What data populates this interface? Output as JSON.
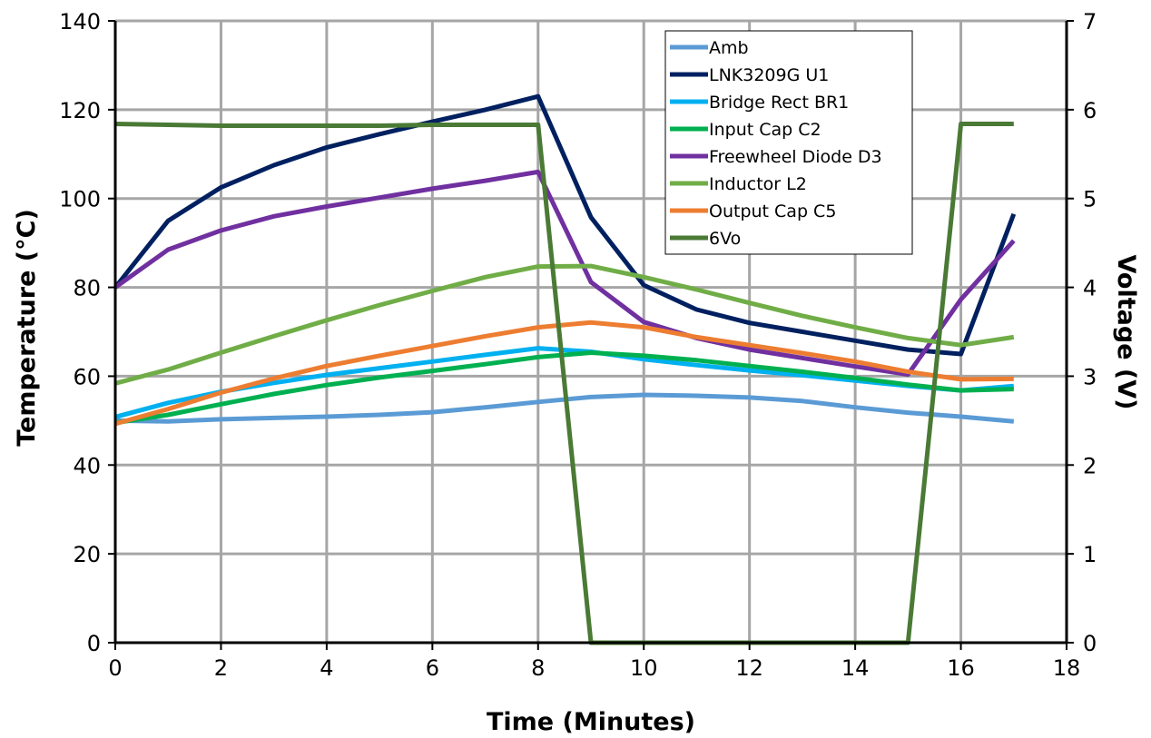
{
  "chart_data": {
    "type": "line",
    "xlabel": "Time (Minutes)",
    "ylabel": "Temperature (°C)",
    "y2label": "Voltage (V)",
    "xlim": [
      0,
      18
    ],
    "ylim": [
      0,
      140
    ],
    "y2lim": [
      0,
      7
    ],
    "xticks": [
      "0",
      "2",
      "4",
      "6",
      "8",
      "10",
      "12",
      "14",
      "16",
      "18"
    ],
    "yticks": [
      "0",
      "20",
      "40",
      "60",
      "80",
      "100",
      "120",
      "140"
    ],
    "y2ticks": [
      "0",
      "1",
      "2",
      "3",
      "4",
      "5",
      "6",
      "7"
    ],
    "grid": true,
    "legend_position": "top-right",
    "series": [
      {
        "name": "Amb",
        "color": "#5B9BD5",
        "axis": "left",
        "x": [
          0,
          1,
          2,
          3,
          4,
          5,
          6,
          7,
          8,
          9,
          10,
          11,
          12,
          13,
          14,
          15,
          16,
          17
        ],
        "y": [
          50,
          49.8,
          50.3,
          50.6,
          50.9,
          51.3,
          51.9,
          53,
          54.2,
          55.3,
          55.8,
          55.6,
          55.2,
          54.4,
          53,
          51.8,
          50.9,
          49.8
        ]
      },
      {
        "name": "LNK3209G U1",
        "color": "#002060",
        "axis": "left",
        "x": [
          0,
          1,
          2,
          3,
          4,
          5,
          6,
          7,
          8,
          9,
          10,
          11,
          12,
          13,
          14,
          15,
          16,
          17
        ],
        "y": [
          80,
          95,
          102.5,
          107.5,
          111.5,
          114.5,
          117.3,
          120,
          123,
          95.8,
          80.5,
          75,
          72,
          70,
          68,
          66,
          65,
          96.5
        ]
      },
      {
        "name": "Bridge Rect BR1",
        "color": "#00B0F0",
        "axis": "left",
        "x": [
          0,
          1,
          2,
          3,
          4,
          5,
          6,
          7,
          8,
          9,
          10,
          11,
          12,
          13,
          14,
          15,
          16,
          17
        ],
        "y": [
          50.8,
          54,
          56.5,
          58.5,
          60.3,
          61.8,
          63.3,
          64.8,
          66.3,
          65.5,
          63.8,
          62.5,
          61.3,
          60.2,
          59,
          57.8,
          56.8,
          57.8
        ]
      },
      {
        "name": "Input Cap C2",
        "color": "#00B050",
        "axis": "left",
        "x": [
          0,
          1,
          2,
          3,
          4,
          5,
          6,
          7,
          8,
          9,
          10,
          11,
          12,
          13,
          14,
          15,
          16,
          17
        ],
        "y": [
          49.5,
          51.3,
          53.7,
          56,
          58,
          59.7,
          61.2,
          62.7,
          64.3,
          65.3,
          64.6,
          63.6,
          62.3,
          61,
          59.6,
          58.1,
          56.8,
          57.1
        ]
      },
      {
        "name": "Freewheel Diode D3",
        "color": "#7030A0",
        "axis": "left",
        "x": [
          0,
          1,
          2,
          3,
          4,
          5,
          6,
          7,
          8,
          9,
          10,
          11,
          12,
          13,
          14,
          15,
          16,
          17
        ],
        "y": [
          80,
          88.5,
          92.8,
          96,
          98.2,
          100.2,
          102.2,
          104,
          106,
          81.2,
          72.2,
          68.6,
          66,
          64.1,
          62.2,
          60.4,
          77.3,
          90.5
        ]
      },
      {
        "name": "Inductor L2",
        "color": "#70AD47",
        "axis": "left",
        "x": [
          0,
          1,
          2,
          3,
          4,
          5,
          6,
          7,
          8,
          9,
          10,
          11,
          12,
          13,
          14,
          15,
          16,
          17
        ],
        "y": [
          58.4,
          61.5,
          65.3,
          69,
          72.6,
          76,
          79.2,
          82.3,
          84.7,
          84.8,
          82.3,
          79.5,
          76.5,
          73.6,
          71,
          68.6,
          67,
          68.8
        ]
      },
      {
        "name": "Output Cap C5",
        "color": "#ED7D31",
        "axis": "left",
        "x": [
          0,
          1,
          2,
          3,
          4,
          5,
          6,
          7,
          8,
          9,
          10,
          11,
          12,
          13,
          14,
          15,
          16,
          17
        ],
        "y": [
          49.3,
          52.6,
          56.3,
          59.5,
          62.3,
          64.6,
          66.8,
          69,
          71,
          72.1,
          71,
          68.8,
          67,
          65.2,
          63.3,
          61,
          59.3,
          59.4
        ]
      },
      {
        "name": "6Vo",
        "color": "#4A7A35",
        "axis": "right",
        "x": [
          0,
          1,
          2,
          3,
          4,
          5,
          6,
          7,
          8,
          9,
          10,
          11,
          12,
          13,
          14,
          15,
          16,
          17
        ],
        "y": [
          5.84,
          5.83,
          5.82,
          5.82,
          5.82,
          5.82,
          5.83,
          5.83,
          5.83,
          0,
          0,
          0,
          0,
          0,
          0,
          0,
          5.84,
          5.84
        ]
      }
    ]
  }
}
